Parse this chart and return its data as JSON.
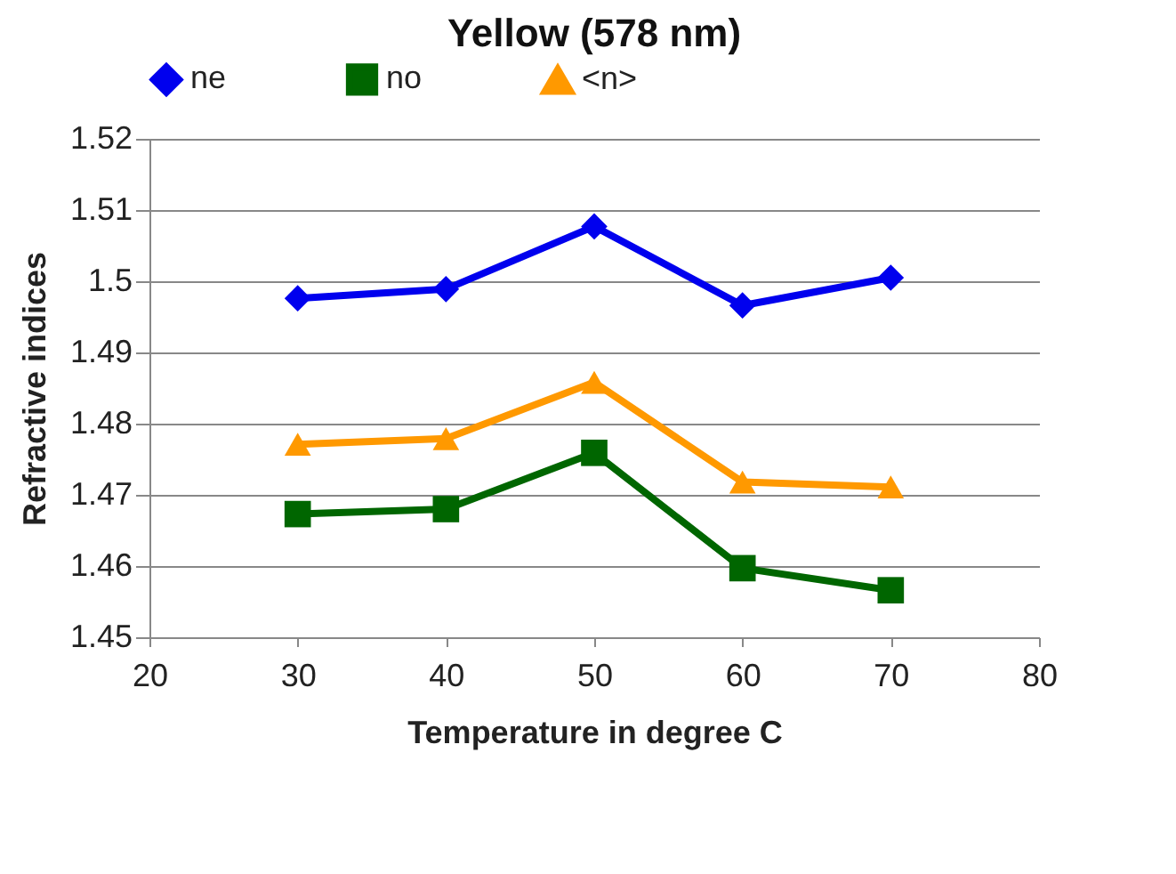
{
  "chart_data": {
    "type": "line",
    "title": "Yellow (578 nm)",
    "xlabel": "Temperature in degree C",
    "ylabel": "Refractive indices",
    "x": [
      30,
      40,
      50,
      60,
      70
    ],
    "series": [
      {
        "name": "ne",
        "color": "#0000ee",
        "marker": "diamond",
        "values": [
          1.4976,
          1.4989,
          1.5077,
          1.4966,
          1.5005
        ]
      },
      {
        "name": "no",
        "color": "#006600",
        "marker": "square",
        "values": [
          1.4673,
          1.468,
          1.4759,
          1.4597,
          1.4566
        ]
      },
      {
        "name": "<n>",
        "color": "#ff9900",
        "marker": "triangle",
        "values": [
          1.4771,
          1.4779,
          1.4858,
          1.4718,
          1.4711
        ]
      }
    ],
    "xlim": [
      20,
      80
    ],
    "xticks": [
      20,
      30,
      40,
      50,
      60,
      70,
      80
    ],
    "ylim": [
      1.45,
      1.52
    ],
    "yticks": [
      1.45,
      1.46,
      1.47,
      1.48,
      1.49,
      1.5,
      1.51,
      1.52
    ],
    "grid": "y",
    "legend": "top",
    "line_style": "solid"
  }
}
